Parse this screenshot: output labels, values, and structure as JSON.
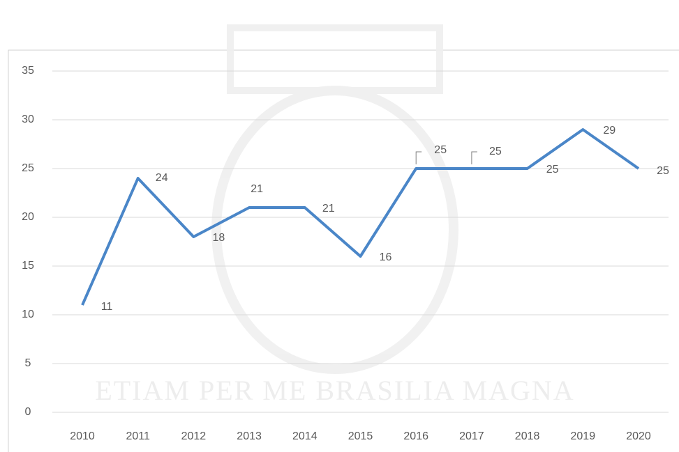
{
  "chart_data": {
    "type": "line",
    "watermark": "ETIAM PER ME BRASILIA MAGNA",
    "categories": [
      "2010",
      "2011",
      "2012",
      "2013",
      "2014",
      "2015",
      "2016",
      "2017",
      "2018",
      "2019",
      "2020"
    ],
    "series": [
      {
        "color": "#4a86c8",
        "values": [
          11,
          24,
          18,
          21,
          21,
          16,
          25,
          25,
          25,
          29,
          25
        ]
      }
    ],
    "ylim": [
      0,
      35
    ],
    "yticks": [
      0,
      5,
      10,
      15,
      20,
      25,
      30,
      35
    ],
    "grid": true
  }
}
